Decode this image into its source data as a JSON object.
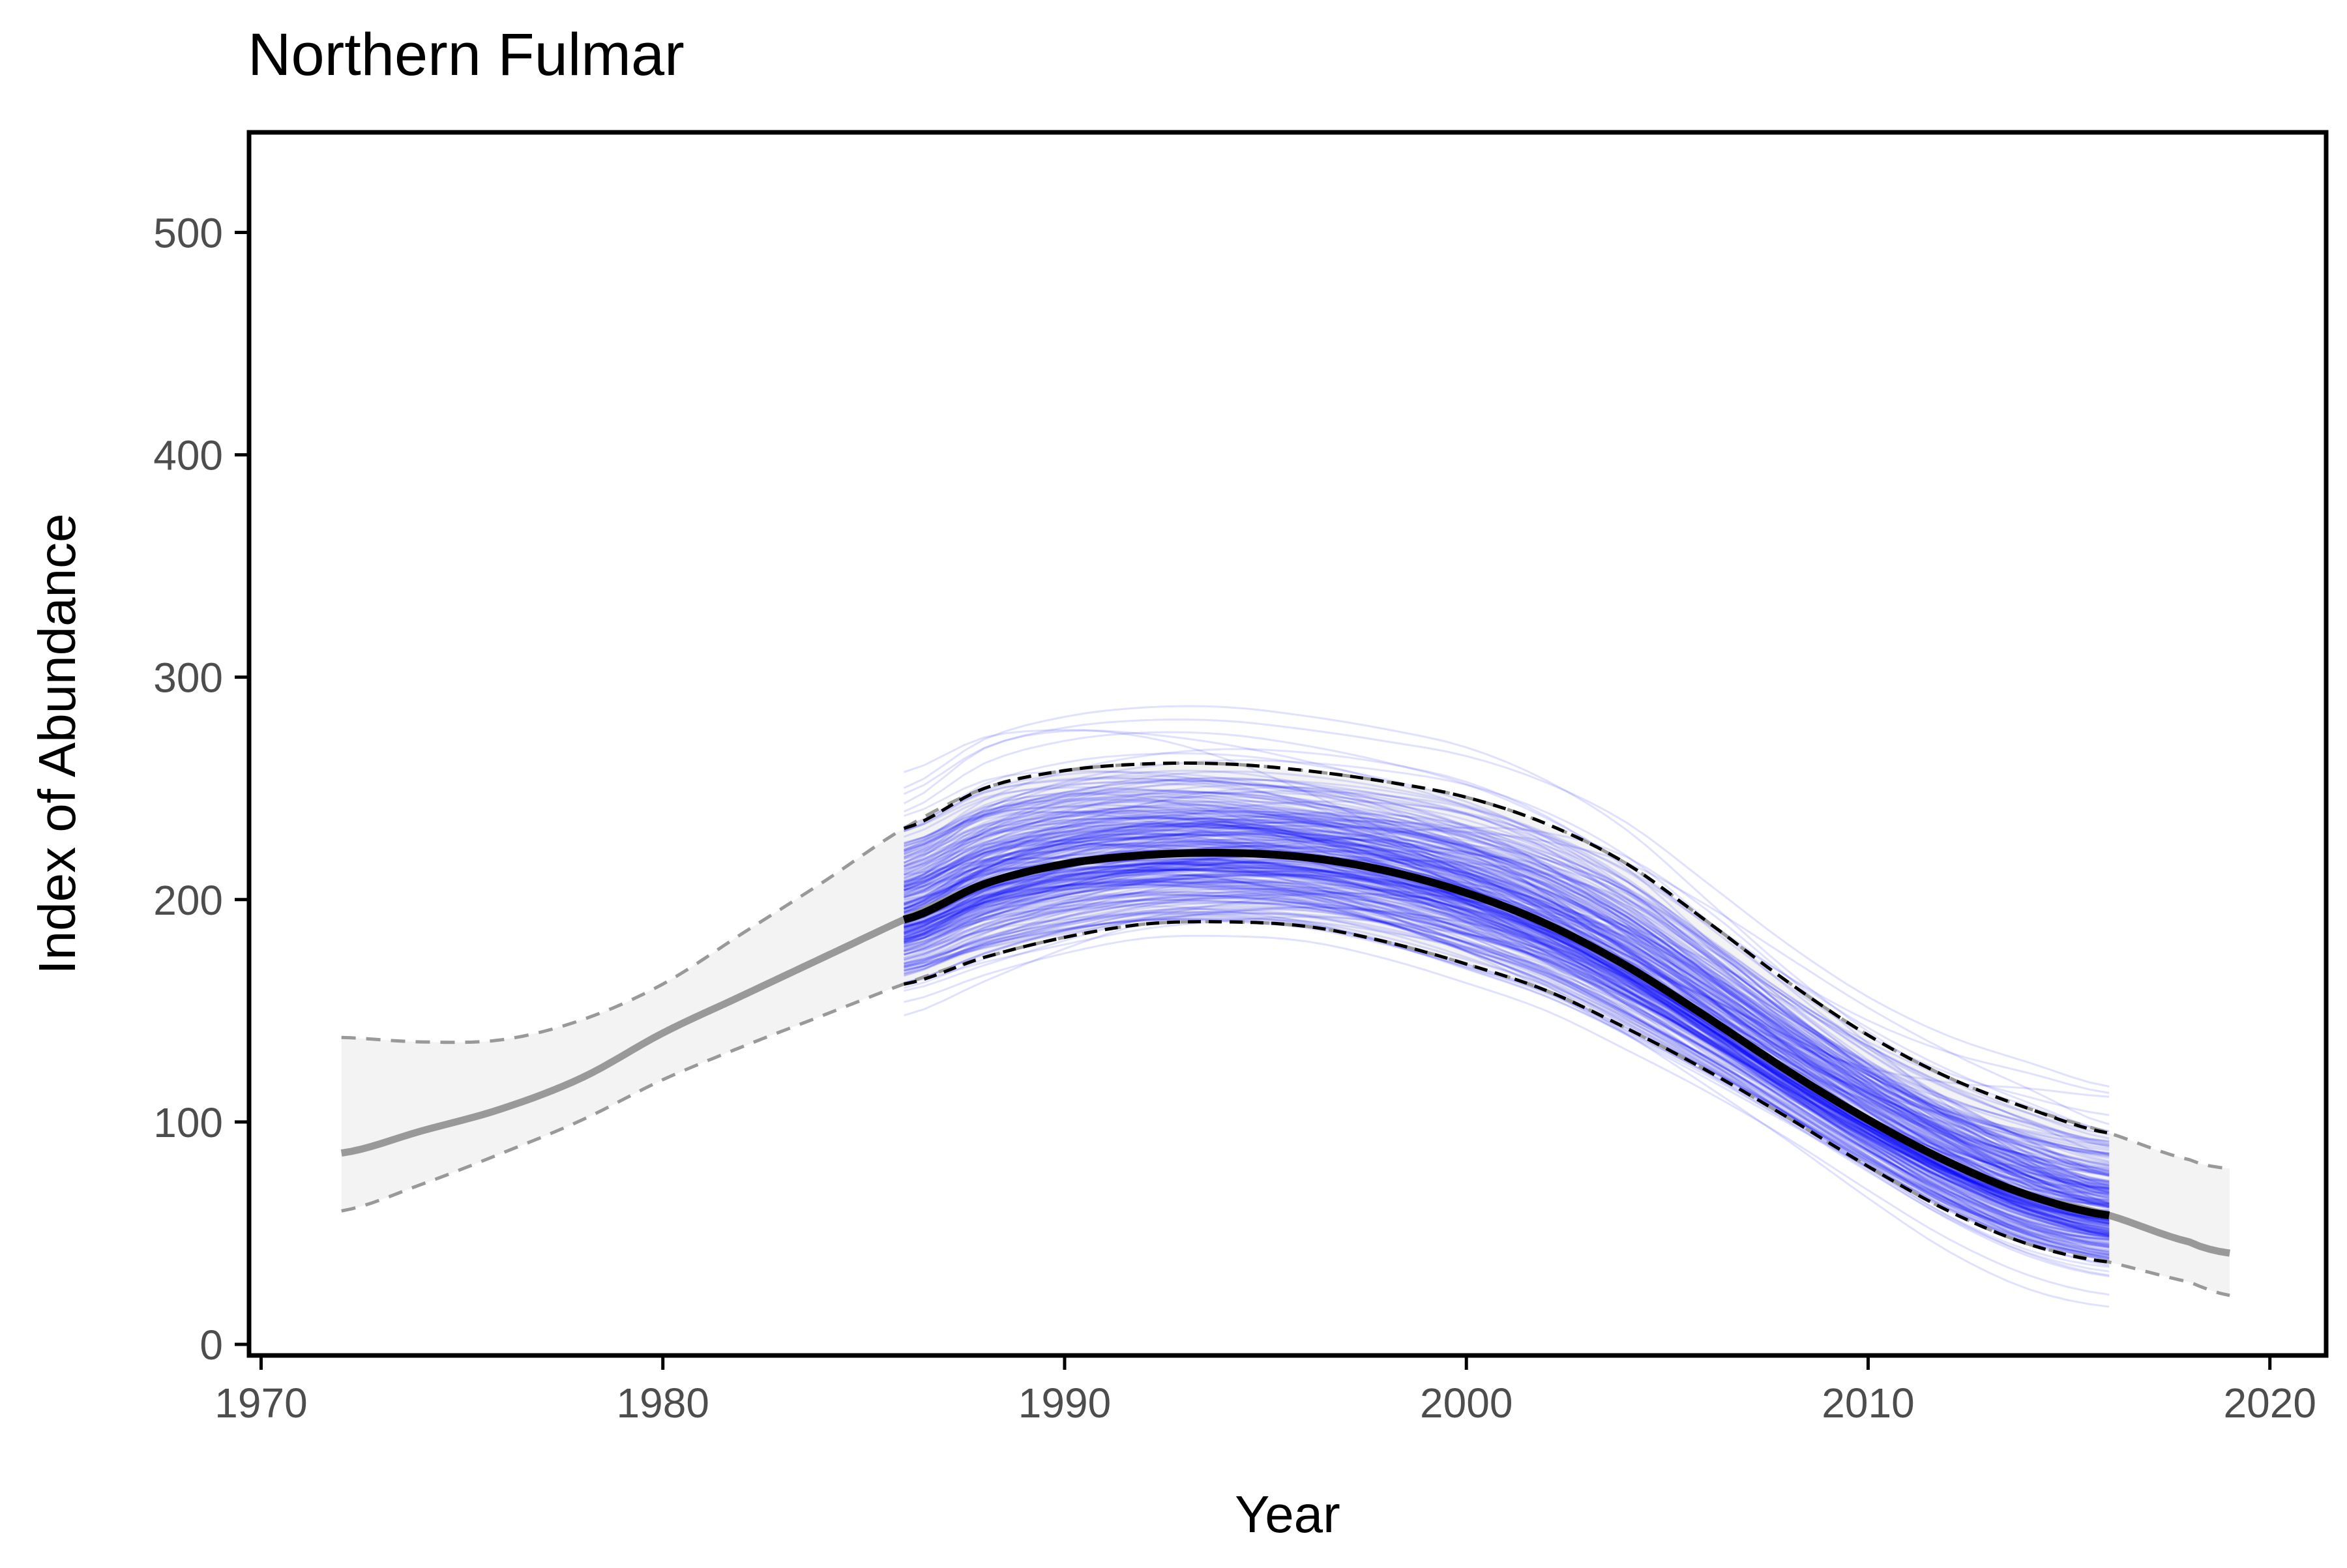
{
  "chart_data": {
    "type": "line",
    "title": "Northern Fulmar",
    "xlabel": "Year",
    "ylabel": "Index of Abundance",
    "xlim": [
      1969.7,
      2021.4
    ],
    "ylim": [
      -5,
      545
    ],
    "x_ticks": [
      1970,
      1980,
      1990,
      2000,
      2010,
      2020
    ],
    "y_ticks": [
      0,
      100,
      200,
      300,
      400,
      500
    ],
    "grid": false,
    "legend": "none",
    "colors": {
      "trend_extended": "#999999",
      "ci_extended": "#999999",
      "ci_band": "#f3f3f3",
      "posterior_draws": "#0000ff",
      "trend_focal": "#000000",
      "ci_focal": "#000000"
    },
    "series": [
      {
        "role": "trend_extended",
        "x": [
          1972,
          1974,
          1976,
          1978,
          1980,
          1982,
          1984,
          1986,
          1988,
          1990,
          1992,
          1994,
          1996,
          1998,
          2000,
          2002,
          2004,
          2006,
          2008,
          2010,
          2012,
          2014,
          2016,
          2018,
          2019
        ],
        "y": [
          86,
          96,
          106,
          120,
          140,
          157,
          174,
          191,
          207,
          216,
          220,
          221,
          219,
          213,
          203,
          189,
          170,
          147,
          123,
          101,
          82,
          67,
          58,
          46,
          41
        ]
      },
      {
        "role": "ci_upper_extended",
        "x": [
          1972,
          1974,
          1976,
          1978,
          1980,
          1982,
          1984,
          1986,
          1988,
          1990,
          1992,
          1994,
          1996,
          1998,
          2000,
          2002,
          2004,
          2006,
          2008,
          2010,
          2012,
          2014,
          2016,
          2018,
          2019
        ],
        "y": [
          138,
          136,
          137,
          146,
          162,
          185,
          208,
          232,
          250,
          258,
          261,
          261,
          258,
          253,
          246,
          234,
          216,
          190,
          163,
          139,
          120,
          106,
          95,
          83,
          79
        ]
      },
      {
        "role": "ci_lower_extended",
        "x": [
          1972,
          1974,
          1976,
          1978,
          1980,
          1982,
          1984,
          1986,
          1988,
          1990,
          1992,
          1994,
          1996,
          1998,
          2000,
          2002,
          2004,
          2006,
          2008,
          2010,
          2012,
          2014,
          2016,
          2018,
          2019
        ],
        "y": [
          60,
          72,
          86,
          101,
          119,
          134,
          148,
          162,
          174,
          183,
          189,
          190,
          188,
          181,
          171,
          159,
          142,
          123,
          102,
          80,
          60,
          45,
          37,
          28,
          22
        ]
      },
      {
        "role": "trend_focal",
        "x": [
          1986,
          1988,
          1990,
          1992,
          1994,
          1996,
          1998,
          2000,
          2002,
          2004,
          2006,
          2008,
          2010,
          2012,
          2014,
          2016
        ],
        "y": [
          191,
          207,
          216,
          220,
          221,
          219,
          213,
          203,
          189,
          170,
          147,
          123,
          101,
          82,
          67,
          58
        ]
      },
      {
        "role": "ci_upper_focal",
        "x": [
          1986,
          1988,
          1990,
          1992,
          1994,
          1996,
          1998,
          2000,
          2002,
          2004,
          2006,
          2008,
          2010,
          2012,
          2014,
          2016
        ],
        "y": [
          232,
          250,
          258,
          261,
          261,
          258,
          253,
          246,
          234,
          216,
          190,
          163,
          139,
          120,
          106,
          95
        ]
      },
      {
        "role": "ci_lower_focal",
        "x": [
          1986,
          1988,
          1990,
          1992,
          1994,
          1996,
          1998,
          2000,
          2002,
          2004,
          2006,
          2008,
          2010,
          2012,
          2014,
          2016
        ],
        "y": [
          162,
          174,
          183,
          189,
          190,
          188,
          181,
          171,
          159,
          142,
          123,
          102,
          80,
          60,
          45,
          37
        ]
      }
    ],
    "posterior_draws": {
      "x_range": [
        1986,
        2016
      ],
      "count": 300,
      "envelope_upper": [
        265,
        290,
        290,
        293,
        285,
        270,
        262,
        262,
        260,
        245,
        215,
        180,
        155,
        138,
        128,
        125
      ],
      "envelope_lower": [
        155,
        165,
        172,
        176,
        177,
        176,
        173,
        166,
        152,
        135,
        113,
        92,
        70,
        50,
        38,
        28
      ]
    }
  }
}
